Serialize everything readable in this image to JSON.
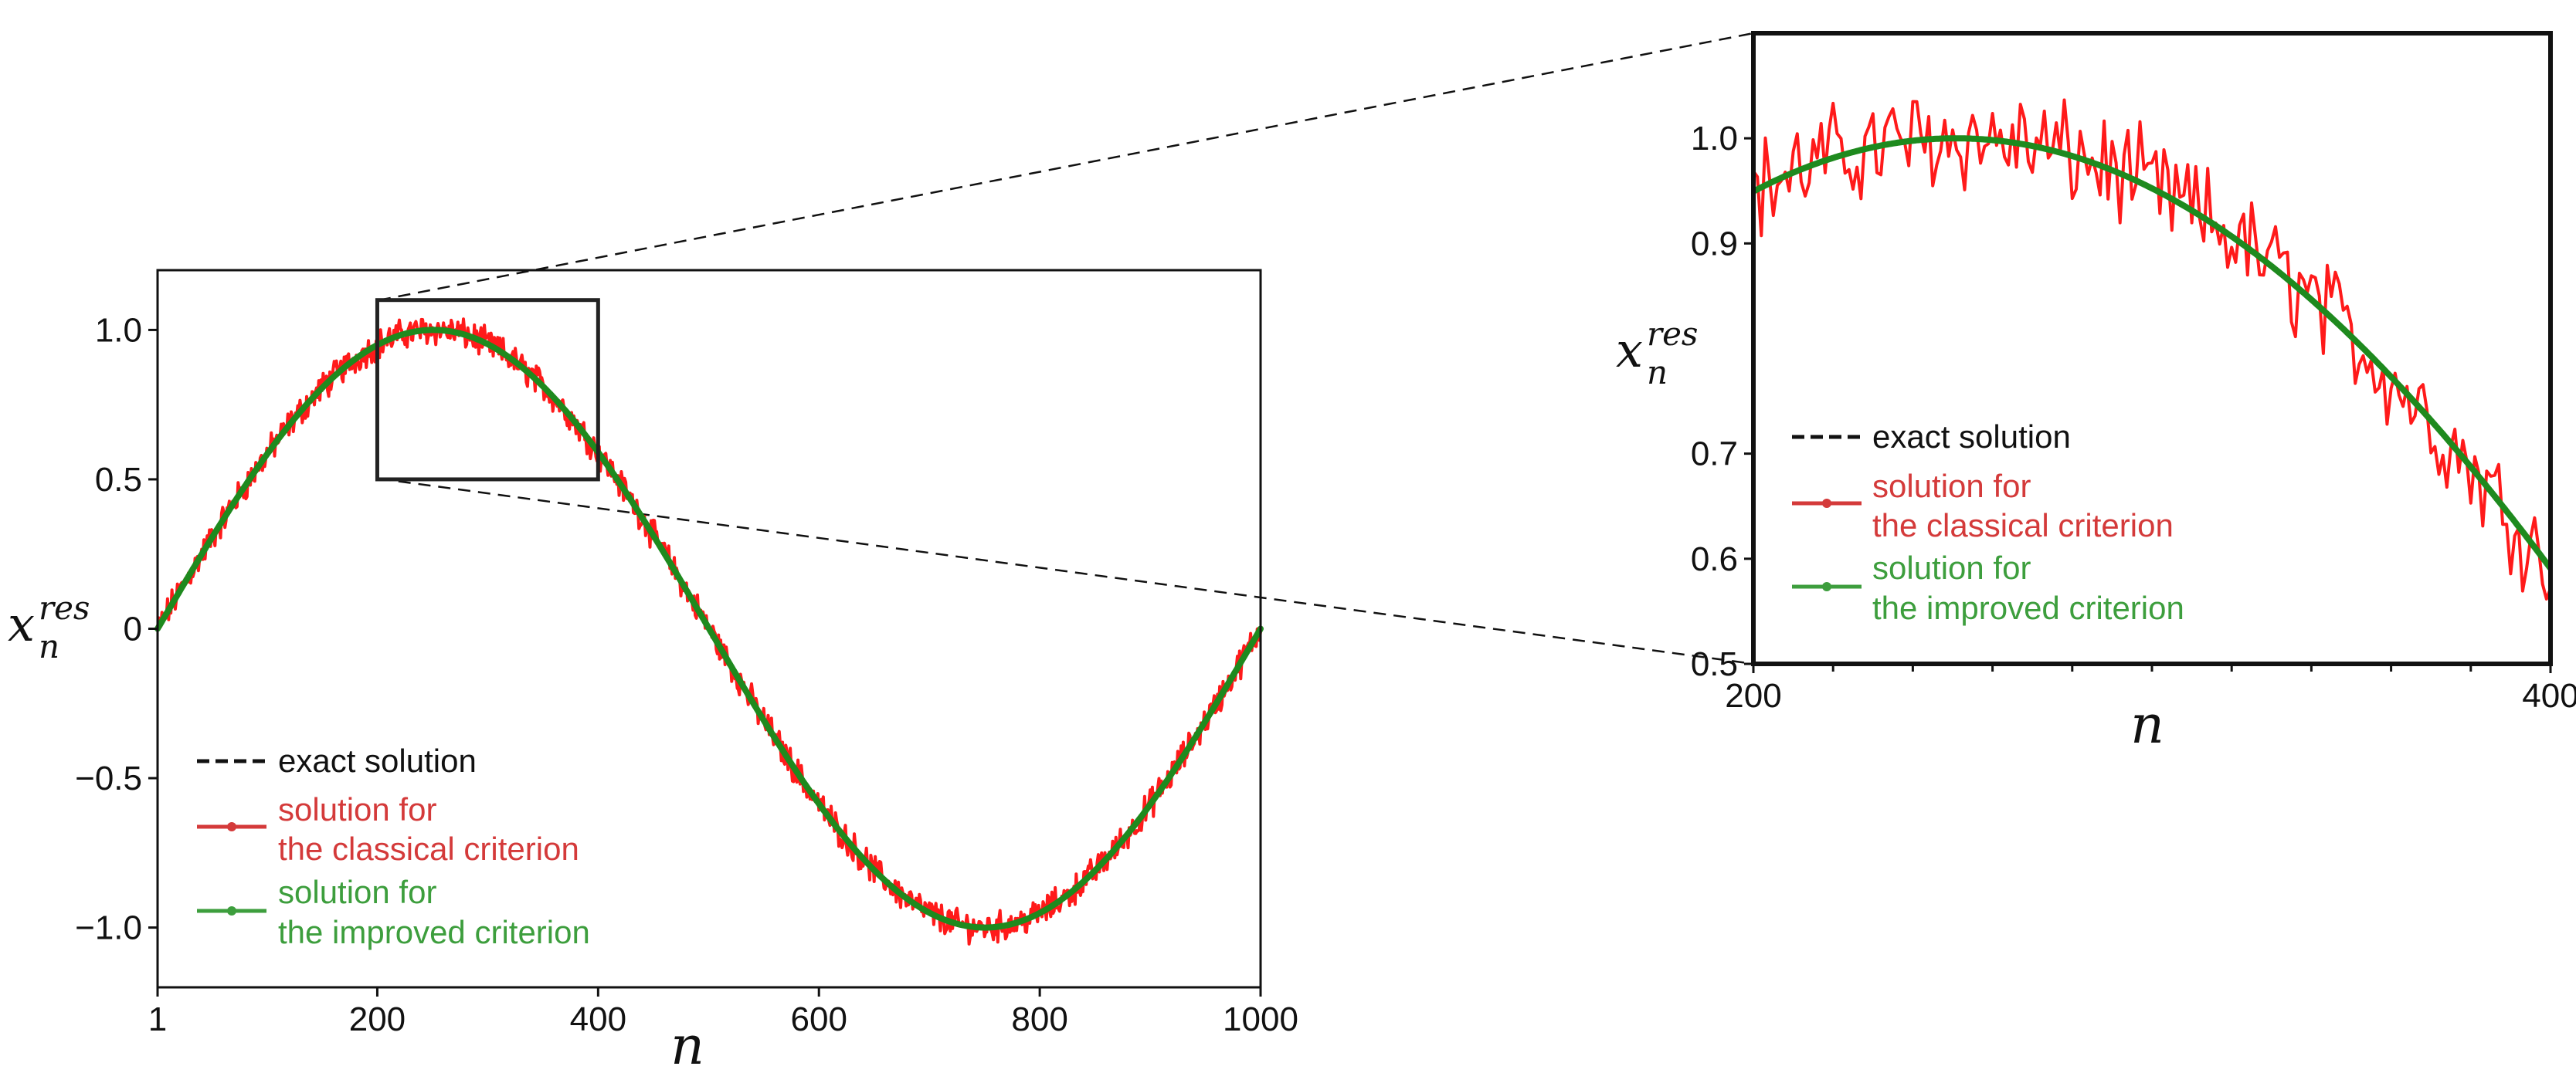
{
  "colors": {
    "exact": "#111111",
    "classical": "#ff1a1a",
    "classical_legend": "#d43a3a",
    "improved": "#1e8a1e",
    "improved_legend": "#3d9e3d"
  },
  "legend": {
    "exact": "exact solution",
    "classical_line1": "solution for",
    "classical_line2": "the classical criterion",
    "improved_line1": "solution for",
    "improved_line2": "the improved criterion"
  },
  "chart_data": [
    {
      "id": "main",
      "type": "line",
      "title": "",
      "xlabel": "n",
      "ylabel": "x",
      "ylabel_superscript": "res",
      "ylabel_subscript": "n",
      "xlim": [
        1,
        1000
      ],
      "ylim": [
        -1.2,
        1.2
      ],
      "xticks": [
        1,
        200,
        400,
        600,
        800,
        1000
      ],
      "xtick_labels": [
        "1",
        "200",
        "400",
        "600",
        "800",
        "1000"
      ],
      "yticks": [
        1.0,
        0.5,
        0,
        -0.5,
        -1.0
      ],
      "ytick_labels": [
        "1.0",
        "0.5",
        "0",
        "−0.5",
        "−1.0"
      ],
      "grid": false,
      "legend_position": "lower-left",
      "series": [
        {
          "name": "exact solution",
          "style": "dashed",
          "formula": "sin(2*pi*(n-1)/999)",
          "n_range": [
            1,
            1000
          ]
        },
        {
          "name": "solution for the classical criterion",
          "style": "noisy",
          "formula": "sin(2*pi*(n-1)/999) + noise",
          "noise_amplitude": 0.04,
          "n_range": [
            1,
            1000
          ]
        },
        {
          "name": "solution for the improved criterion",
          "style": "solid",
          "formula": "sin(2*pi*(n-1)/999)",
          "n_range": [
            1,
            1000
          ]
        }
      ],
      "zoom_box": {
        "x": [
          200,
          400
        ],
        "y": [
          0.5,
          1.1
        ]
      }
    },
    {
      "id": "inset",
      "type": "line",
      "title": "",
      "xlabel": "n",
      "ylabel": "x",
      "ylabel_superscript": "res",
      "ylabel_subscript": "n",
      "xlim": [
        200,
        400
      ],
      "ylim": [
        0.5,
        1.1
      ],
      "xticks": [
        200,
        400
      ],
      "xtick_labels": [
        "200",
        "400"
      ],
      "minor_xticks": [
        220,
        240,
        260,
        280,
        300,
        320,
        340,
        360,
        380
      ],
      "yticks": [
        1.0,
        0.9,
        0.7,
        0.6,
        0.5
      ],
      "ytick_labels": [
        "1.0",
        "0.9",
        "0.7",
        "0.6",
        "0.5"
      ],
      "grid": false,
      "legend_position": "middle-left",
      "series": [
        {
          "name": "exact solution",
          "style": "dashed",
          "formula": "sin(2*pi*(n-1)/999)",
          "n_range": [
            200,
            400
          ]
        },
        {
          "name": "solution for the classical criterion",
          "style": "noisy",
          "formula": "sin(2*pi*(n-1)/999) + noise",
          "noise_amplitude": 0.04,
          "n_range": [
            200,
            400
          ]
        },
        {
          "name": "solution for the improved criterion",
          "style": "solid",
          "formula": "sin(2*pi*(n-1)/999)",
          "n_range": [
            200,
            400
          ]
        }
      ]
    }
  ]
}
